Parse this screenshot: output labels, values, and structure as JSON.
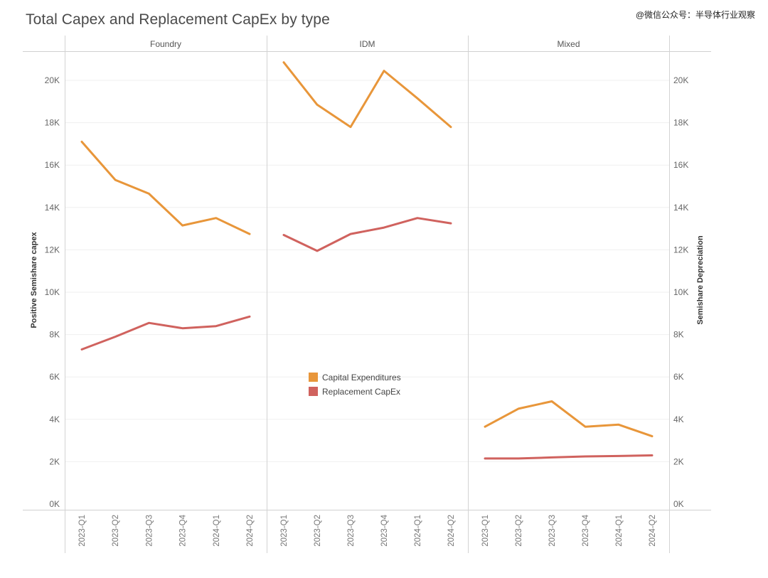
{
  "watermark": "@微信公众号：半导体行业观察",
  "chart_data": {
    "type": "line",
    "title": "Total Capex and Replacement CapEx by type",
    "ylabel_left": "Positive Semishare capex",
    "ylabel_right": "Semishare Depreciation",
    "ylim": [
      0,
      22000
    ],
    "y_ticks": [
      0,
      2000,
      4000,
      6000,
      8000,
      10000,
      12000,
      14000,
      16000,
      18000,
      20000
    ],
    "y_tick_labels": [
      "0K",
      "2K",
      "4K",
      "6K",
      "8K",
      "10K",
      "12K",
      "14K",
      "16K",
      "18K",
      "20K"
    ],
    "grid": true,
    "legend_position": "center",
    "legend": [
      {
        "name": "Capital Expenditures",
        "color": "#E8963A"
      },
      {
        "name": "Replacement CapEx",
        "color": "#D0625E"
      }
    ],
    "categories": [
      "2023-Q1",
      "2023-Q2",
      "2023-Q3",
      "2023-Q4",
      "2024-Q1",
      "2024-Q2"
    ],
    "panels": [
      {
        "name": "Foundry",
        "series": [
          {
            "name": "Capital Expenditures",
            "values": [
              17100,
              15300,
              14650,
              13150,
              13500,
              12750
            ]
          },
          {
            "name": "Replacement CapEx",
            "values": [
              7300,
              7900,
              8550,
              8300,
              8400,
              8850
            ]
          }
        ]
      },
      {
        "name": "IDM",
        "series": [
          {
            "name": "Capital Expenditures",
            "values": [
              20850,
              18850,
              17800,
              20450,
              19150,
              17800
            ]
          },
          {
            "name": "Replacement CapEx",
            "values": [
              12700,
              11950,
              12750,
              13050,
              13500,
              13250
            ]
          }
        ]
      },
      {
        "name": "Mixed",
        "series": [
          {
            "name": "Capital Expenditures",
            "values": [
              3650,
              4500,
              4850,
              3650,
              3750,
              3200
            ]
          },
          {
            "name": "Replacement CapEx",
            "values": [
              2150,
              2150,
              2200,
              2250,
              2270,
              2300
            ]
          }
        ]
      }
    ]
  }
}
